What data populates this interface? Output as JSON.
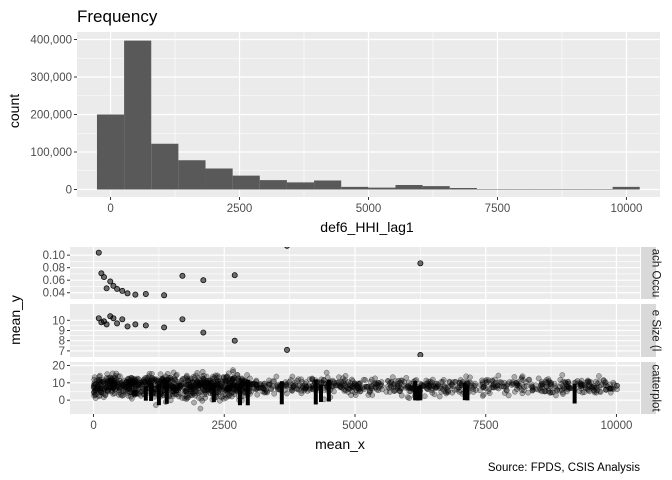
{
  "chart_data": [
    {
      "type": "bar",
      "title": "Frequency",
      "xlabel": "def6_HHI_lag1",
      "ylabel": "count",
      "xlim": [
        -650,
        10650
      ],
      "ylim": [
        -20000,
        420000
      ],
      "x_ticks": [
        0,
        2500,
        5000,
        7500,
        10000
      ],
      "x_tick_labels": [
        "0",
        "2500",
        "5000",
        "7500",
        "10000"
      ],
      "y_ticks": [
        0,
        100000,
        200000,
        300000,
        400000
      ],
      "y_tick_labels": [
        "0",
        "100,000",
        "200,000",
        "300,000",
        "400,000"
      ],
      "grid": true,
      "bin_width": 526,
      "bins": [
        {
          "x": 0,
          "count": 200000
        },
        {
          "x": 526,
          "count": 397000
        },
        {
          "x": 1052,
          "count": 122000
        },
        {
          "x": 1578,
          "count": 78000
        },
        {
          "x": 2104,
          "count": 56000
        },
        {
          "x": 2630,
          "count": 37000
        },
        {
          "x": 3156,
          "count": 25000
        },
        {
          "x": 3682,
          "count": 19000
        },
        {
          "x": 4208,
          "count": 24000
        },
        {
          "x": 4734,
          "count": 7000
        },
        {
          "x": 5260,
          "count": 5000
        },
        {
          "x": 5786,
          "count": 12000
        },
        {
          "x": 6312,
          "count": 9000
        },
        {
          "x": 6838,
          "count": 4000
        },
        {
          "x": 7364,
          "count": 1000
        },
        {
          "x": 7890,
          "count": 1000
        },
        {
          "x": 8416,
          "count": 1000
        },
        {
          "x": 8942,
          "count": 1000
        },
        {
          "x": 9468,
          "count": 1000
        },
        {
          "x": 9994,
          "count": 7000
        }
      ]
    },
    {
      "type": "scatter",
      "xlabel": "mean_x",
      "ylabel": "mean_y",
      "xlim": [
        -450,
        10450
      ],
      "x_ticks": [
        0,
        2500,
        5000,
        7500,
        10000
      ],
      "x_tick_labels": [
        "0",
        "2500",
        "5000",
        "7500",
        "10000"
      ],
      "grid": true,
      "facets": [
        {
          "strip": "ach Occu",
          "ylim": [
            0.03,
            0.113
          ],
          "y_ticks": [
            0.04,
            0.06,
            0.08,
            0.1
          ],
          "y_tick_labels": [
            "0.04",
            "0.06",
            "0.08",
            "0.10"
          ],
          "points": [
            [
              100,
              0.104
            ],
            [
              150,
              0.071
            ],
            [
              200,
              0.065
            ],
            [
              250,
              0.047
            ],
            [
              320,
              0.058
            ],
            [
              380,
              0.051
            ],
            [
              450,
              0.046
            ],
            [
              550,
              0.043
            ],
            [
              650,
              0.039
            ],
            [
              800,
              0.037
            ],
            [
              1000,
              0.038
            ],
            [
              1350,
              0.036
            ],
            [
              1700,
              0.067
            ],
            [
              2100,
              0.06
            ],
            [
              2700,
              0.068
            ],
            [
              3700,
              0.115
            ],
            [
              6250,
              0.087
            ]
          ]
        },
        {
          "strip": "e Size (l",
          "ylim": [
            6.4,
            11.6
          ],
          "y_ticks": [
            7,
            8,
            9,
            10
          ],
          "y_tick_labels": [
            "7",
            "8",
            "9",
            "10"
          ],
          "points": [
            [
              100,
              10.2
            ],
            [
              150,
              9.8
            ],
            [
              200,
              9.9
            ],
            [
              250,
              9.6
            ],
            [
              320,
              10.4
            ],
            [
              380,
              10.2
            ],
            [
              450,
              9.7
            ],
            [
              550,
              10.1
            ],
            [
              650,
              9.4
            ],
            [
              800,
              9.6
            ],
            [
              1000,
              9.5
            ],
            [
              1350,
              9.3
            ],
            [
              1700,
              10.1
            ],
            [
              2100,
              8.8
            ],
            [
              2700,
              8.0
            ],
            [
              3700,
              7.1
            ],
            [
              6250,
              6.6
            ]
          ]
        },
        {
          "strip": "catterplot",
          "ylim": [
            -8,
            22
          ],
          "y_ticks": [
            0,
            10,
            20
          ],
          "y_tick_labels": [
            "0",
            "10",
            "20"
          ],
          "dense": true
        }
      ]
    }
  ],
  "caption": "Source: FPDS, CSIS Analysis",
  "colors": {
    "panel": "#ebebeb",
    "grid": "#ffffff",
    "bar": "#595959",
    "strip": "#d9d9d9",
    "point": "#000000"
  }
}
